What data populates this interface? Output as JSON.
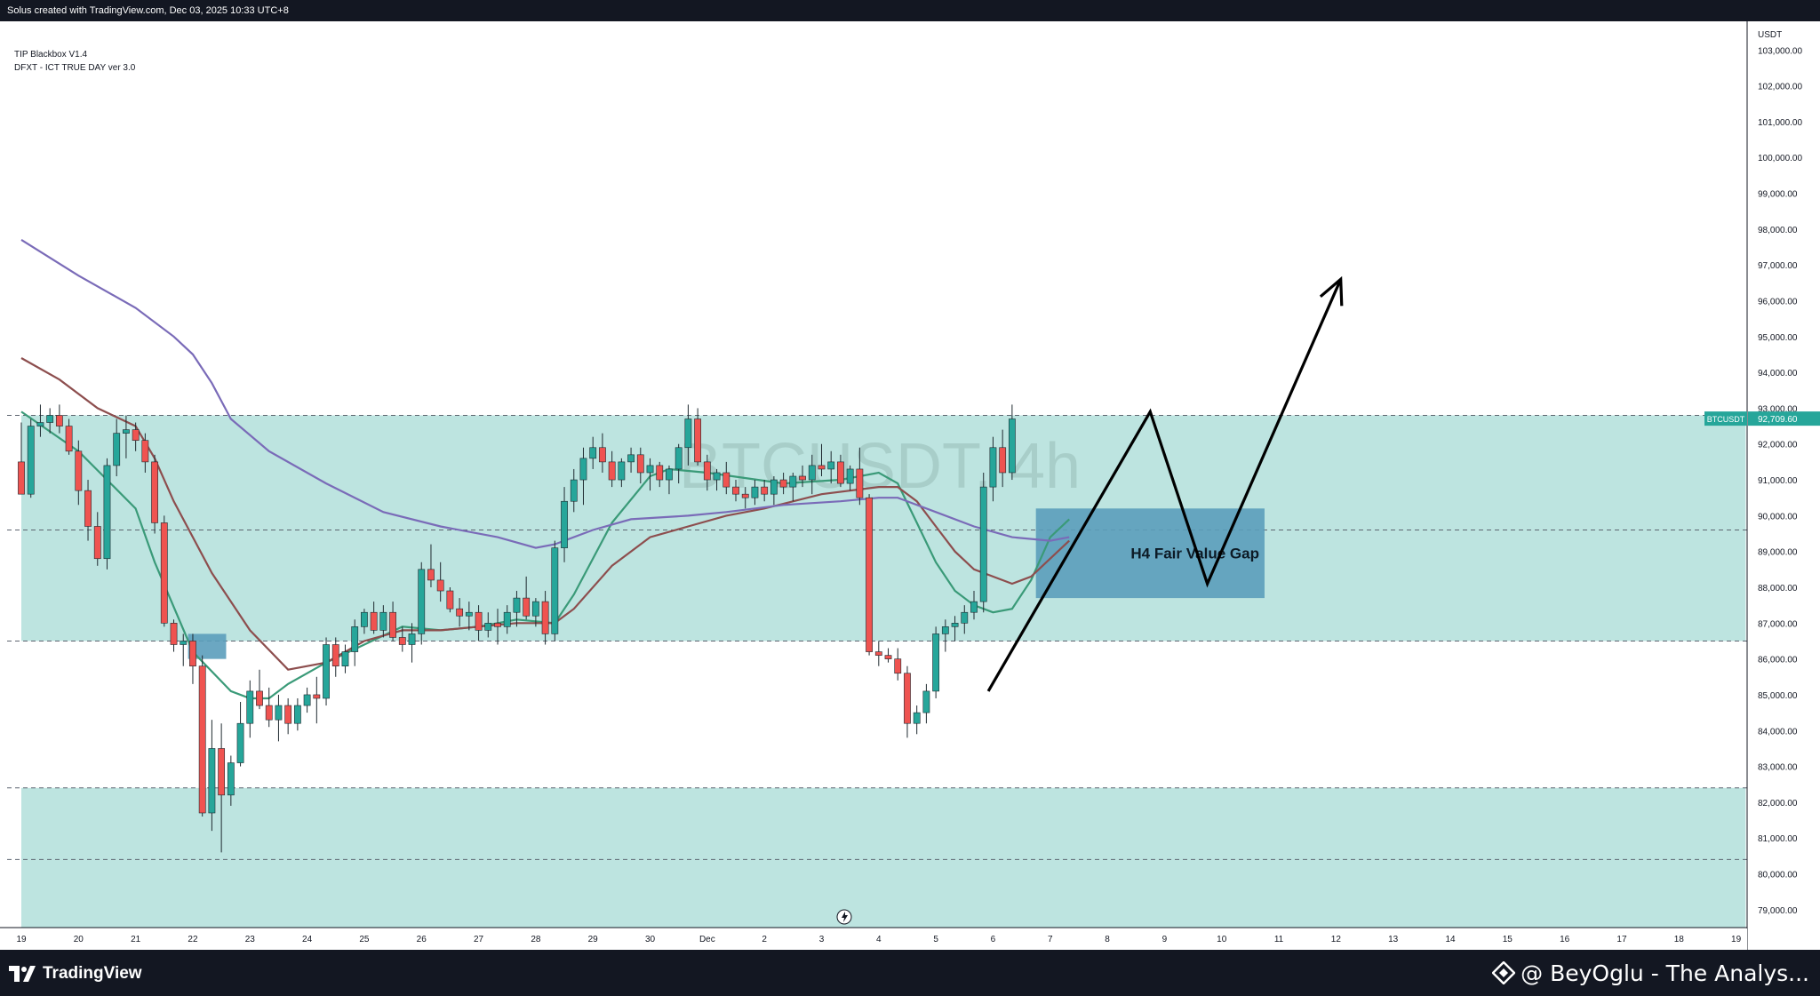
{
  "header": {
    "caption": "Solus created with TradingView.com, Dec 03, 2025 10:33 UTC+8"
  },
  "indicators": [
    "TIP Blackbox V1.4",
    "DFXT - ICT TRUE DAY ver 3.0"
  ],
  "watermark": "BTCUSDT, 4h",
  "footer": {
    "logo_text": "TradingView",
    "author": "@ BeyOglu - The Analys..."
  },
  "colors": {
    "bull": "#26a69a",
    "bear": "#ef5350",
    "zone": "#b2dfdb",
    "fvg": "#5b9dbb",
    "ema_green": "#3a9a78",
    "ema_red": "#8d4e4e",
    "ema_purple": "#7a6bb8"
  },
  "chart_data": {
    "type": "candlestick",
    "symbol": "BTCUSDT",
    "timeframe": "4h",
    "quote_currency": "USDT",
    "ylim": [
      78500,
      103800
    ],
    "y_ticks": [
      79000,
      80000,
      81000,
      82000,
      83000,
      84000,
      85000,
      86000,
      87000,
      88000,
      89000,
      90000,
      91000,
      92000,
      93000,
      94000,
      95000,
      96000,
      97000,
      98000,
      99000,
      100000,
      101000,
      102000,
      103000
    ],
    "y_tick_labels": [
      "79,000.00",
      "80,000.00",
      "81,000.00",
      "82,000.00",
      "83,000.00",
      "84,000.00",
      "85,000.00",
      "86,000.00",
      "87,000.00",
      "88,000.00",
      "89,000.00",
      "90,000.00",
      "91,000.00",
      "92,000.00",
      "93,000.00",
      "94,000.00",
      "95,000.00",
      "96,000.00",
      "97,000.00",
      "98,000.00",
      "99,000.00",
      "100,000.00",
      "101,000.00",
      "102,000.00",
      "103,000.00"
    ],
    "x_ticks": [
      {
        "i": 0,
        "label": "19"
      },
      {
        "i": 6,
        "label": "20"
      },
      {
        "i": 12,
        "label": "21"
      },
      {
        "i": 18,
        "label": "22"
      },
      {
        "i": 24,
        "label": "23"
      },
      {
        "i": 30,
        "label": "24"
      },
      {
        "i": 36,
        "label": "25"
      },
      {
        "i": 42,
        "label": "26"
      },
      {
        "i": 48,
        "label": "27"
      },
      {
        "i": 54,
        "label": "28"
      },
      {
        "i": 60,
        "label": "29"
      },
      {
        "i": 66,
        "label": "30"
      },
      {
        "i": 72,
        "label": "Dec"
      },
      {
        "i": 78,
        "label": "2"
      },
      {
        "i": 84,
        "label": "3"
      },
      {
        "i": 90,
        "label": "4"
      },
      {
        "i": 96,
        "label": "5"
      },
      {
        "i": 102,
        "label": "6"
      },
      {
        "i": 108,
        "label": "7"
      },
      {
        "i": 114,
        "label": "8"
      },
      {
        "i": 120,
        "label": "9"
      },
      {
        "i": 126,
        "label": "10"
      },
      {
        "i": 132,
        "label": "11"
      },
      {
        "i": 138,
        "label": "12"
      },
      {
        "i": 144,
        "label": "13"
      },
      {
        "i": 150,
        "label": "14"
      },
      {
        "i": 156,
        "label": "15"
      },
      {
        "i": 162,
        "label": "16"
      },
      {
        "i": 168,
        "label": "17"
      },
      {
        "i": 174,
        "label": "18"
      },
      {
        "i": 180,
        "label": "19"
      }
    ],
    "last_price": {
      "symbol": "BTCUSDT",
      "value": 92709.6,
      "label": "92,709.60"
    },
    "candles": [
      [
        91500,
        92600,
        90600,
        90600
      ],
      [
        90600,
        92700,
        90500,
        92500
      ],
      [
        92500,
        93100,
        92200,
        92600
      ],
      [
        92600,
        93000,
        92300,
        92800
      ],
      [
        92800,
        93100,
        92300,
        92500
      ],
      [
        92500,
        92700,
        91700,
        91800
      ],
      [
        91800,
        92100,
        90300,
        90700
      ],
      [
        90700,
        91000,
        89300,
        89700
      ],
      [
        89700,
        90100,
        88600,
        88800
      ],
      [
        88800,
        91600,
        88500,
        91400
      ],
      [
        91400,
        92700,
        91100,
        92300
      ],
      [
        92300,
        92800,
        91600,
        92400
      ],
      [
        92400,
        92600,
        91800,
        92100
      ],
      [
        92100,
        92300,
        91200,
        91500
      ],
      [
        91500,
        91700,
        89500,
        89800
      ],
      [
        89800,
        90000,
        86900,
        87000
      ],
      [
        87000,
        87100,
        86200,
        86400
      ],
      [
        86400,
        86700,
        85800,
        86500
      ],
      [
        86500,
        86700,
        85300,
        85800
      ],
      [
        85800,
        86100,
        81600,
        81700
      ],
      [
        81700,
        84300,
        81200,
        83500
      ],
      [
        83500,
        84200,
        80600,
        82200
      ],
      [
        82200,
        83300,
        81900,
        83100
      ],
      [
        83100,
        84800,
        83000,
        84200
      ],
      [
        84200,
        85400,
        83800,
        85100
      ],
      [
        85100,
        85700,
        84600,
        84700
      ],
      [
        84700,
        85200,
        84100,
        84300
      ],
      [
        84300,
        85000,
        83700,
        84700
      ],
      [
        84700,
        84900,
        83900,
        84200
      ],
      [
        84200,
        84900,
        84000,
        84700
      ],
      [
        84700,
        85200,
        84500,
        85000
      ],
      [
        85000,
        85500,
        84200,
        84900
      ],
      [
        84900,
        86600,
        84700,
        86400
      ],
      [
        86400,
        86600,
        85500,
        85800
      ],
      [
        85800,
        86400,
        85600,
        86200
      ],
      [
        86200,
        87100,
        85800,
        86900
      ],
      [
        86900,
        87400,
        86700,
        87300
      ],
      [
        87300,
        87600,
        86700,
        86800
      ],
      [
        86800,
        87500,
        86600,
        87300
      ],
      [
        87300,
        87600,
        86500,
        86600
      ],
      [
        86600,
        86900,
        86200,
        86400
      ],
      [
        86400,
        87000,
        85900,
        86700
      ],
      [
        86700,
        88700,
        86400,
        88500
      ],
      [
        88500,
        89200,
        88000,
        88200
      ],
      [
        88200,
        88700,
        87600,
        87900
      ],
      [
        87900,
        88000,
        87300,
        87400
      ],
      [
        87400,
        87700,
        86900,
        87200
      ],
      [
        87200,
        87600,
        86800,
        87300
      ],
      [
        87300,
        87500,
        86500,
        86800
      ],
      [
        86800,
        87300,
        86600,
        87000
      ],
      [
        87000,
        87400,
        86400,
        86900
      ],
      [
        86900,
        87500,
        86700,
        87300
      ],
      [
        87300,
        87900,
        86900,
        87700
      ],
      [
        87700,
        88300,
        87100,
        87200
      ],
      [
        87200,
        87700,
        86900,
        87600
      ],
      [
        87600,
        87900,
        86400,
        86700
      ],
      [
        86700,
        89300,
        86500,
        89100
      ],
      [
        89100,
        90800,
        88700,
        90400
      ],
      [
        90400,
        91300,
        90100,
        91000
      ],
      [
        91000,
        91900,
        90300,
        91600
      ],
      [
        91600,
        92200,
        91300,
        91900
      ],
      [
        91900,
        92300,
        91200,
        91500
      ],
      [
        91500,
        91800,
        90800,
        91000
      ],
      [
        91000,
        91600,
        90800,
        91500
      ],
      [
        91500,
        91900,
        91200,
        91700
      ],
      [
        91700,
        91900,
        90900,
        91200
      ],
      [
        91200,
        91600,
        90700,
        91400
      ],
      [
        91400,
        91500,
        90800,
        91000
      ],
      [
        91000,
        91400,
        90600,
        91300
      ],
      [
        91300,
        92000,
        90900,
        91900
      ],
      [
        91900,
        93100,
        91400,
        92700
      ],
      [
        92700,
        93000,
        91400,
        91500
      ],
      [
        91500,
        91700,
        90700,
        91000
      ],
      [
        91000,
        91300,
        90700,
        91200
      ],
      [
        91200,
        91500,
        90600,
        90800
      ],
      [
        90800,
        91000,
        90400,
        90600
      ],
      [
        90600,
        90800,
        90200,
        90500
      ],
      [
        90500,
        91000,
        90300,
        90800
      ],
      [
        90800,
        91000,
        90400,
        90600
      ],
      [
        90600,
        91100,
        90300,
        91000
      ],
      [
        91000,
        91200,
        90600,
        90800
      ],
      [
        90800,
        91200,
        90400,
        91100
      ],
      [
        91100,
        91400,
        90800,
        91000
      ],
      [
        91000,
        91700,
        90600,
        91400
      ],
      [
        91400,
        92000,
        91100,
        91300
      ],
      [
        91300,
        91800,
        90900,
        91500
      ],
      [
        91500,
        91700,
        90800,
        90900
      ],
      [
        90900,
        91400,
        90700,
        91300
      ],
      [
        91300,
        91900,
        90300,
        90500
      ],
      [
        90500,
        90600,
        86100,
        86200
      ],
      [
        86200,
        86500,
        85800,
        86100
      ],
      [
        86100,
        86300,
        85900,
        86000
      ],
      [
        86000,
        86300,
        85400,
        85600
      ],
      [
        85600,
        85800,
        83800,
        84200
      ],
      [
        84200,
        84700,
        83900,
        84500
      ],
      [
        84500,
        85300,
        84200,
        85100
      ],
      [
        85100,
        86900,
        84900,
        86700
      ],
      [
        86700,
        87100,
        86200,
        86900
      ],
      [
        86900,
        87200,
        86500,
        87000
      ],
      [
        87000,
        87500,
        86700,
        87300
      ],
      [
        87300,
        87900,
        87100,
        87600
      ],
      [
        87600,
        91200,
        87300,
        90800
      ],
      [
        90800,
        92200,
        90400,
        91900
      ],
      [
        91900,
        92400,
        90800,
        91200
      ],
      [
        91200,
        93100,
        91000,
        92700
      ]
    ],
    "series": [
      {
        "name": "",
        "color": "#3a9a78",
        "points": [
          [
            0,
            92900
          ],
          [
            6,
            91800
          ],
          [
            12,
            90200
          ],
          [
            14,
            88700
          ],
          [
            18,
            86200
          ],
          [
            22,
            85100
          ],
          [
            24,
            84900
          ],
          [
            26,
            84900
          ],
          [
            28,
            85300
          ],
          [
            32,
            85900
          ],
          [
            36,
            86400
          ],
          [
            40,
            86900
          ],
          [
            44,
            86800
          ],
          [
            48,
            86900
          ],
          [
            52,
            87100
          ],
          [
            56,
            87000
          ],
          [
            58,
            87800
          ],
          [
            62,
            89800
          ],
          [
            66,
            91100
          ],
          [
            68,
            91300
          ],
          [
            72,
            91200
          ],
          [
            80,
            90900
          ],
          [
            86,
            91000
          ],
          [
            90,
            91200
          ],
          [
            92,
            90900
          ],
          [
            94,
            89800
          ],
          [
            96,
            88700
          ],
          [
            98,
            87900
          ],
          [
            100,
            87500
          ],
          [
            102,
            87300
          ],
          [
            104,
            87400
          ],
          [
            106,
            88200
          ],
          [
            108,
            89400
          ],
          [
            110,
            89900
          ]
        ]
      },
      {
        "name": "",
        "color": "#8d4e4e",
        "points": [
          [
            0,
            94400
          ],
          [
            4,
            93800
          ],
          [
            8,
            93000
          ],
          [
            12,
            92500
          ],
          [
            14,
            91600
          ],
          [
            16,
            90400
          ],
          [
            20,
            88400
          ],
          [
            24,
            86800
          ],
          [
            28,
            85700
          ],
          [
            32,
            85900
          ],
          [
            36,
            86500
          ],
          [
            40,
            86800
          ],
          [
            44,
            86800
          ],
          [
            48,
            86900
          ],
          [
            52,
            87000
          ],
          [
            56,
            87000
          ],
          [
            58,
            87400
          ],
          [
            62,
            88600
          ],
          [
            66,
            89400
          ],
          [
            70,
            89700
          ],
          [
            74,
            90000
          ],
          [
            78,
            90200
          ],
          [
            84,
            90600
          ],
          [
            90,
            90800
          ],
          [
            92,
            90800
          ],
          [
            94,
            90400
          ],
          [
            96,
            89700
          ],
          [
            98,
            89000
          ],
          [
            100,
            88500
          ],
          [
            104,
            88100
          ],
          [
            106,
            88300
          ],
          [
            108,
            88800
          ],
          [
            110,
            89300
          ]
        ]
      },
      {
        "name": "",
        "color": "#7a6bb8",
        "points": [
          [
            0,
            97700
          ],
          [
            6,
            96700
          ],
          [
            12,
            95800
          ],
          [
            16,
            95000
          ],
          [
            18,
            94500
          ],
          [
            20,
            93700
          ],
          [
            22,
            92700
          ],
          [
            26,
            91800
          ],
          [
            32,
            90900
          ],
          [
            38,
            90100
          ],
          [
            44,
            89700
          ],
          [
            50,
            89400
          ],
          [
            54,
            89100
          ],
          [
            56,
            89200
          ],
          [
            60,
            89600
          ],
          [
            64,
            89900
          ],
          [
            70,
            90000
          ],
          [
            74,
            90100
          ],
          [
            80,
            90300
          ],
          [
            86,
            90400
          ],
          [
            90,
            90500
          ],
          [
            92,
            90500
          ],
          [
            96,
            90100
          ],
          [
            100,
            89700
          ],
          [
            104,
            89400
          ],
          [
            108,
            89300
          ],
          [
            110,
            89400
          ]
        ]
      }
    ],
    "zones": [
      {
        "from": 86500,
        "to": 92800,
        "start": 0,
        "end": 181
      },
      {
        "from": 78500,
        "to": 82400,
        "start": 0,
        "end": 181
      }
    ],
    "dashed_levels": [
      92800,
      89600,
      86500,
      82400,
      80400
    ],
    "fvg_boxes": [
      {
        "label": "",
        "from": 86000,
        "to": 86700,
        "start": 17.5,
        "end": 21.5
      },
      {
        "label": "H4 Fair Value Gap",
        "from": 87700,
        "to": 90200,
        "start": 106.5,
        "end": 130.5
      }
    ],
    "projection": {
      "points": [
        [
          101.5,
          85100
        ],
        [
          118.5,
          92900
        ],
        [
          124.5,
          88100
        ],
        [
          138.5,
          96600
        ]
      ],
      "arrow": true
    }
  }
}
